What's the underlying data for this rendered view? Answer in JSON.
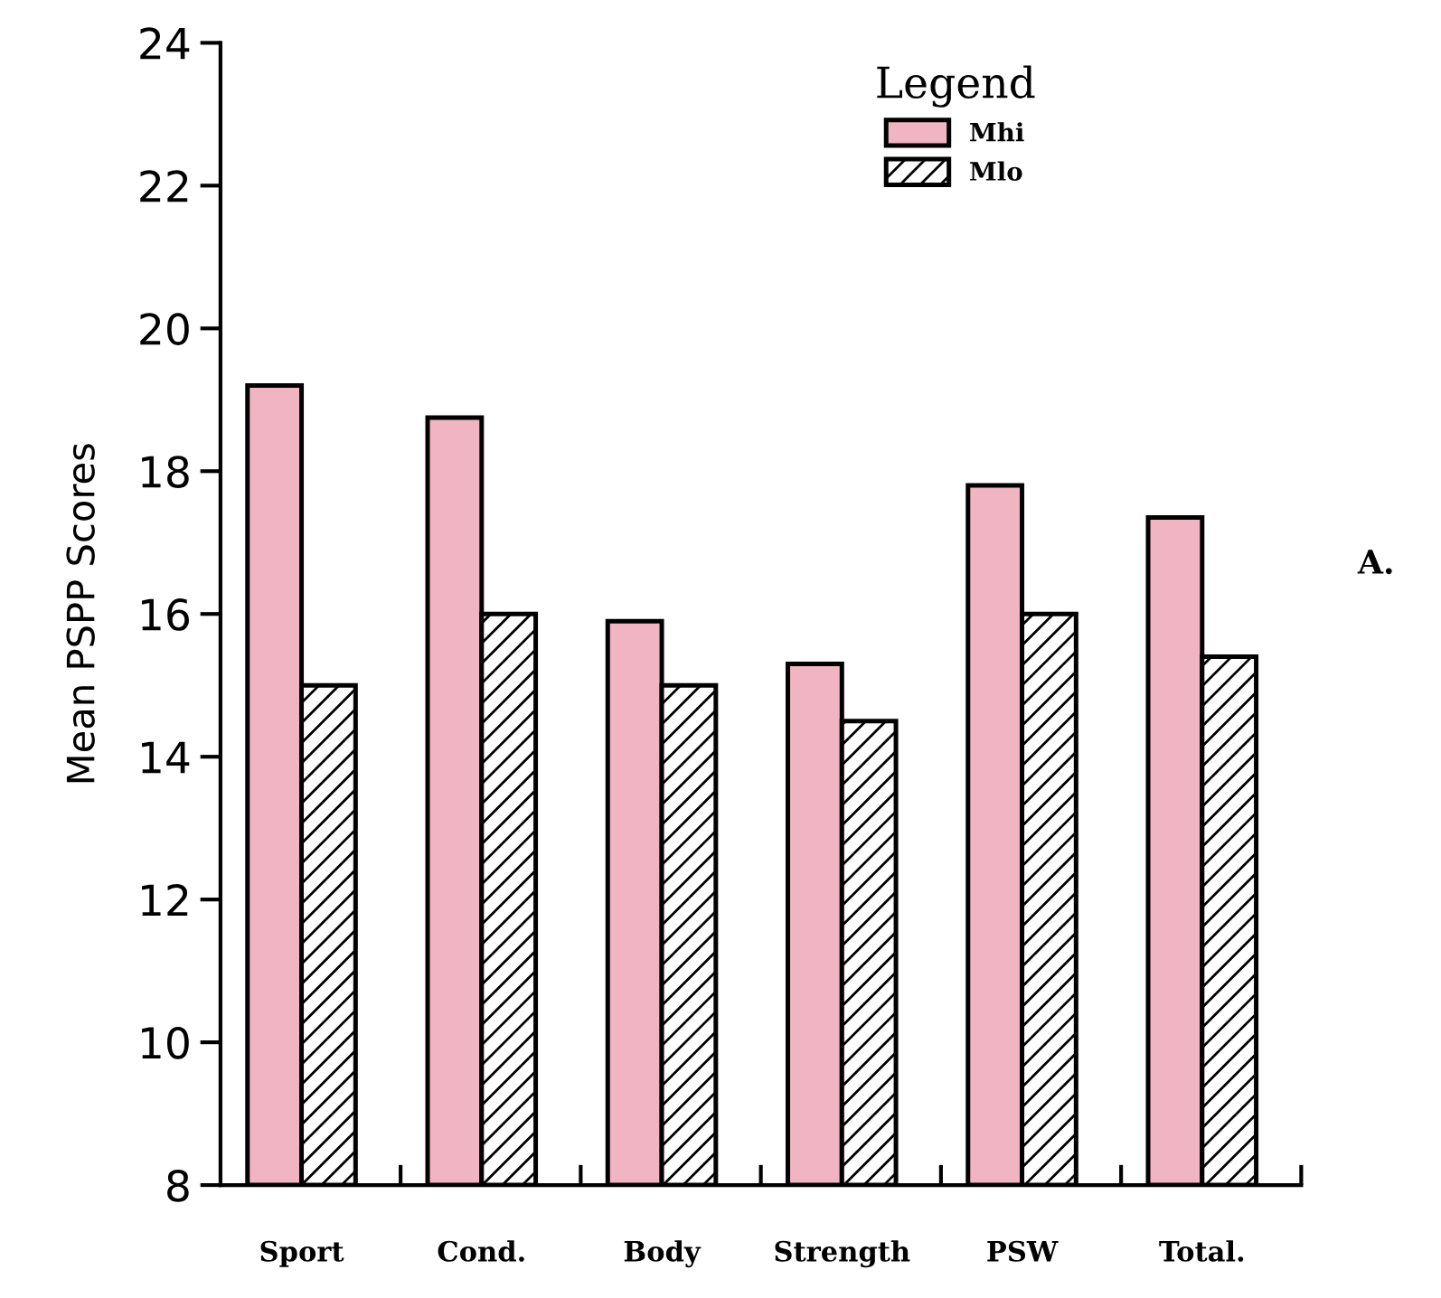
{
  "chart_data": {
    "type": "bar",
    "ylabel": "Mean PSPP Scores",
    "categories": [
      "Sport",
      "Cond.",
      "Body",
      "Strength",
      "PSW",
      "Total."
    ],
    "series": [
      {
        "name": "Mhi",
        "color": "#f0b4c2",
        "values": [
          19.2,
          18.75,
          15.9,
          15.3,
          17.8,
          17.35
        ]
      },
      {
        "name": "Mlo",
        "color": "#000000",
        "values": [
          15,
          16,
          15,
          14.5,
          16,
          15.4
        ]
      }
    ],
    "legend_title": "Legend",
    "legend": "top",
    "ylim": [
      8,
      24
    ],
    "yticks": [
      8,
      10,
      12,
      14,
      16,
      18,
      20,
      22,
      24
    ],
    "grid": false,
    "annotations": [
      "A."
    ]
  }
}
